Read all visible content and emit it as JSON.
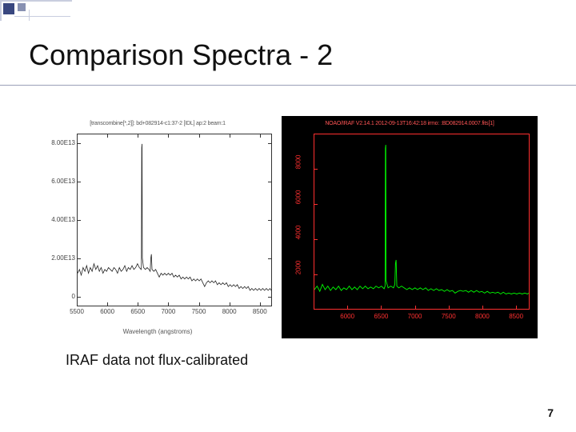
{
  "slide": {
    "title": "Comparison Spectra - 2",
    "caption": "IRAF data not flux-calibrated",
    "page_number": "7",
    "corner": {
      "square_color": "#39477f",
      "line_color": "#c9cedf"
    }
  },
  "left_chart": {
    "type": "line",
    "title_text": "[transcombine[*,2]]: bd+082914-c1:37-2 [IDL] ap:2 beam:1",
    "xlabel": "Wavelength (angstroms)",
    "xlim": [
      5500,
      8700
    ],
    "xticks": [
      5500,
      6000,
      6500,
      7000,
      7500,
      8000,
      8500
    ],
    "ylim": [
      -5000000000000.0,
      85000000000000.0
    ],
    "yticks_labels": [
      "0",
      "2.00E13",
      "4.00E13",
      "6.00E13",
      "8.00E13"
    ],
    "yticks_values": [
      0,
      20000000000000.0,
      40000000000000.0,
      60000000000000.0,
      80000000000000.0
    ],
    "line_color": "#222222",
    "background_color": "#ffffff",
    "border_color": "#333333",
    "line_width": 0.8,
    "data": [
      [
        5500,
        12000000000000.0
      ],
      [
        5530,
        14000000000000.0
      ],
      [
        5560,
        11000000000000.0
      ],
      [
        5590,
        15000000000000.0
      ],
      [
        5620,
        13000000000000.0
      ],
      [
        5650,
        16000000000000.0
      ],
      [
        5680,
        12000000000000.0
      ],
      [
        5710,
        15000000000000.0
      ],
      [
        5740,
        13000000000000.0
      ],
      [
        5770,
        17000000000000.0
      ],
      [
        5800,
        14000000000000.0
      ],
      [
        5830,
        16000000000000.0
      ],
      [
        5860,
        13000000000000.0
      ],
      [
        5890,
        15000000000000.0
      ],
      [
        5920,
        12000000000000.0
      ],
      [
        5950,
        14000000000000.0
      ],
      [
        5980,
        13000000000000.0
      ],
      [
        6010,
        15000000000000.0
      ],
      [
        6040,
        14000000000000.0
      ],
      [
        6070,
        13000000000000.0
      ],
      [
        6100,
        15000000000000.0
      ],
      [
        6130,
        14000000000000.0
      ],
      [
        6160,
        12000000000000.0
      ],
      [
        6190,
        15000000000000.0
      ],
      [
        6220,
        13000000000000.0
      ],
      [
        6250,
        14000000000000.0
      ],
      [
        6280,
        16000000000000.0
      ],
      [
        6310,
        13000000000000.0
      ],
      [
        6340,
        15000000000000.0
      ],
      [
        6370,
        14000000000000.0
      ],
      [
        6400,
        16000000000000.0
      ],
      [
        6430,
        14000000000000.0
      ],
      [
        6460,
        15000000000000.0
      ],
      [
        6490,
        17000000000000.0
      ],
      [
        6520,
        15000000000000.0
      ],
      [
        6550,
        14000000000000.0
      ],
      [
        6555,
        15000000000000.0
      ],
      [
        6560,
        78000000000000.0
      ],
      [
        6565,
        80000000000000.0
      ],
      [
        6570,
        20000000000000.0
      ],
      [
        6590,
        15000000000000.0
      ],
      [
        6620,
        14000000000000.0
      ],
      [
        6650,
        15000000000000.0
      ],
      [
        6680,
        14000000000000.0
      ],
      [
        6700,
        13000000000000.0
      ],
      [
        6710,
        20000000000000.0
      ],
      [
        6720,
        22000000000000.0
      ],
      [
        6730,
        14000000000000.0
      ],
      [
        6760,
        13000000000000.0
      ],
      [
        6790,
        14000000000000.0
      ],
      [
        6820,
        12000000000000.0
      ],
      [
        6850,
        10000000000000.0
      ],
      [
        6880,
        12000000000000.0
      ],
      [
        6910,
        11000000000000.0
      ],
      [
        6940,
        12000000000000.0
      ],
      [
        6970,
        11000000000000.0
      ],
      [
        7000,
        12000000000000.0
      ],
      [
        7030,
        11000000000000.0
      ],
      [
        7060,
        12000000000000.0
      ],
      [
        7090,
        10000000000000.0
      ],
      [
        7120,
        11000000000000.0
      ],
      [
        7150,
        10000000000000.0
      ],
      [
        7180,
        11000000000000.0
      ],
      [
        7210,
        9000000000000.0
      ],
      [
        7240,
        10000000000000.0
      ],
      [
        7270,
        9000000000000.0
      ],
      [
        7300,
        10000000000000.0
      ],
      [
        7330,
        9000000000000.0
      ],
      [
        7360,
        10000000000000.0
      ],
      [
        7390,
        8000000000000.0
      ],
      [
        7420,
        9000000000000.0
      ],
      [
        7450,
        8000000000000.0
      ],
      [
        7480,
        9000000000000.0
      ],
      [
        7510,
        8000000000000.0
      ],
      [
        7540,
        9000000000000.0
      ],
      [
        7570,
        7000000000000.0
      ],
      [
        7600,
        5000000000000.0
      ],
      [
        7630,
        7000000000000.0
      ],
      [
        7660,
        8000000000000.0
      ],
      [
        7690,
        7000000000000.0
      ],
      [
        7720,
        8000000000000.0
      ],
      [
        7750,
        7000000000000.0
      ],
      [
        7780,
        8000000000000.0
      ],
      [
        7810,
        6000000000000.0
      ],
      [
        7840,
        7000000000000.0
      ],
      [
        7870,
        6000000000000.0
      ],
      [
        7900,
        7000000000000.0
      ],
      [
        7930,
        6000000000000.0
      ],
      [
        7960,
        7000000000000.0
      ],
      [
        7990,
        5000000000000.0
      ],
      [
        8020,
        6000000000000.0
      ],
      [
        8050,
        5000000000000.0
      ],
      [
        8080,
        6000000000000.0
      ],
      [
        8110,
        5000000000000.0
      ],
      [
        8140,
        6000000000000.0
      ],
      [
        8170,
        4000000000000.0
      ],
      [
        8200,
        5000000000000.0
      ],
      [
        8230,
        4000000000000.0
      ],
      [
        8260,
        5000000000000.0
      ],
      [
        8290,
        4000000000000.0
      ],
      [
        8320,
        5000000000000.0
      ],
      [
        8350,
        3000000000000.0
      ],
      [
        8380,
        4000000000000.0
      ],
      [
        8410,
        3000000000000.0
      ],
      [
        8440,
        4000000000000.0
      ],
      [
        8470,
        3000000000000.0
      ],
      [
        8500,
        4000000000000.0
      ],
      [
        8530,
        3000000000000.0
      ],
      [
        8560,
        4000000000000.0
      ],
      [
        8590,
        3000000000000.0
      ],
      [
        8620,
        4000000000000.0
      ],
      [
        8650,
        3000000000000.0
      ],
      [
        8680,
        4000000000000.0
      ],
      [
        8700,
        3000000000000.0
      ]
    ]
  },
  "right_chart": {
    "type": "line",
    "title_text": "NOAO/IRAF V2.14.1 2012-09-13T16:42:18   irmo: :BD082914.0007.fits[1]",
    "ylabel_text": "",
    "xlim": [
      5500,
      8700
    ],
    "xticks": [
      6000,
      6500,
      7000,
      7500,
      8000,
      8500
    ],
    "ylim": [
      0,
      10000
    ],
    "yticks": [
      2000,
      4000,
      6000,
      8000
    ],
    "line_color": "#00ff00",
    "background_color": "#000000",
    "border_color": "#ff3030",
    "text_color": "#ff3030",
    "line_width": 0.9,
    "data": [
      [
        5500,
        1100
      ],
      [
        5540,
        1300
      ],
      [
        5580,
        1000
      ],
      [
        5620,
        1400
      ],
      [
        5660,
        1100
      ],
      [
        5700,
        1300
      ],
      [
        5740,
        1050
      ],
      [
        5780,
        1250
      ],
      [
        5820,
        1100
      ],
      [
        5860,
        1300
      ],
      [
        5900,
        1050
      ],
      [
        5940,
        1200
      ],
      [
        5980,
        1100
      ],
      [
        6020,
        1300
      ],
      [
        6060,
        1100
      ],
      [
        6100,
        1250
      ],
      [
        6140,
        1100
      ],
      [
        6180,
        1300
      ],
      [
        6220,
        1150
      ],
      [
        6260,
        1300
      ],
      [
        6300,
        1150
      ],
      [
        6340,
        1250
      ],
      [
        6380,
        1150
      ],
      [
        6420,
        1300
      ],
      [
        6460,
        1200
      ],
      [
        6500,
        1300
      ],
      [
        6540,
        1150
      ],
      [
        6555,
        1300
      ],
      [
        6560,
        9200
      ],
      [
        6565,
        9400
      ],
      [
        6570,
        1600
      ],
      [
        6600,
        1200
      ],
      [
        6640,
        1300
      ],
      [
        6680,
        1200
      ],
      [
        6700,
        1400
      ],
      [
        6710,
        2600
      ],
      [
        6720,
        2800
      ],
      [
        6730,
        1300
      ],
      [
        6760,
        1200
      ],
      [
        6800,
        1300
      ],
      [
        6840,
        1200
      ],
      [
        6880,
        1100
      ],
      [
        6920,
        1200
      ],
      [
        6960,
        1100
      ],
      [
        7000,
        1200
      ],
      [
        7040,
        1100
      ],
      [
        7080,
        1200
      ],
      [
        7120,
        1100
      ],
      [
        7160,
        1200
      ],
      [
        7200,
        1050
      ],
      [
        7240,
        1150
      ],
      [
        7280,
        1050
      ],
      [
        7320,
        1150
      ],
      [
        7360,
        1050
      ],
      [
        7400,
        1100
      ],
      [
        7440,
        1000
      ],
      [
        7480,
        1100
      ],
      [
        7520,
        1000
      ],
      [
        7560,
        1050
      ],
      [
        7600,
        900
      ],
      [
        7640,
        1000
      ],
      [
        7680,
        1050
      ],
      [
        7720,
        1000
      ],
      [
        7760,
        1050
      ],
      [
        7800,
        950
      ],
      [
        7840,
        1050
      ],
      [
        7880,
        950
      ],
      [
        7920,
        1050
      ],
      [
        7960,
        950
      ],
      [
        8000,
        1000
      ],
      [
        8040,
        900
      ],
      [
        8080,
        1000
      ],
      [
        8120,
        900
      ],
      [
        8160,
        950
      ],
      [
        8200,
        900
      ],
      [
        8240,
        950
      ],
      [
        8280,
        850
      ],
      [
        8320,
        950
      ],
      [
        8360,
        850
      ],
      [
        8400,
        900
      ],
      [
        8440,
        850
      ],
      [
        8480,
        900
      ],
      [
        8520,
        850
      ],
      [
        8560,
        900
      ],
      [
        8600,
        850
      ],
      [
        8640,
        900
      ],
      [
        8680,
        850
      ],
      [
        8700,
        900
      ]
    ]
  }
}
